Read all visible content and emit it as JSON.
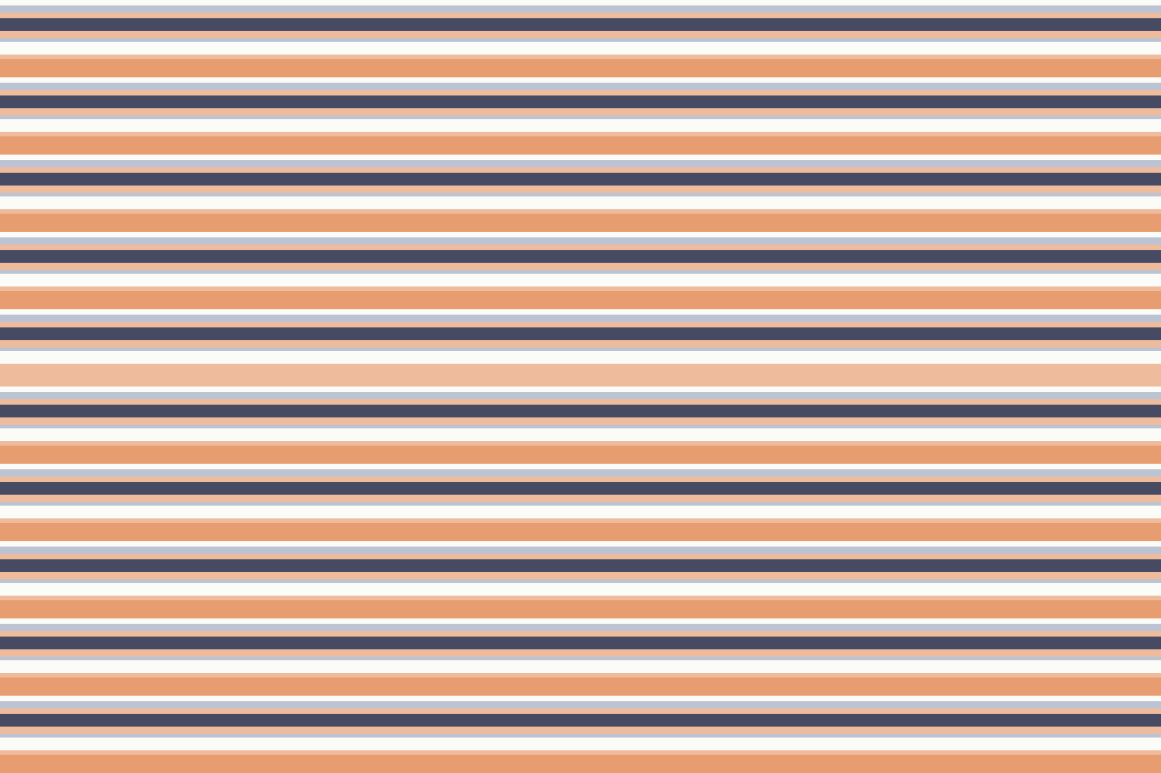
{
  "pattern": {
    "type": "horizontal-stripes",
    "colors": {
      "background": "#fbfbf7",
      "lavender": "#bcc3d2",
      "peach": "#efbb9d",
      "navy": "#474a63",
      "orange": "#e79d6f",
      "light_orange": "#eebc9d"
    },
    "repeats": 10,
    "highlighted_repeat": 4
  }
}
